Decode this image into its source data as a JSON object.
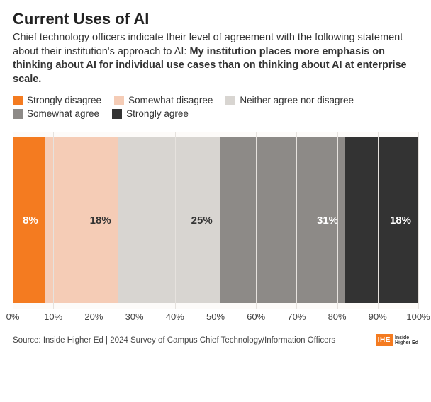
{
  "title": "Current Uses of AI",
  "subtitle_lead": "Chief technology officers indicate their level of agreement with the following statement about their institution's approach to AI: ",
  "subtitle_bold": "My institution places more emphasis on thinking about AI for individual use cases than on thinking about AI at enterprise scale.",
  "chart": {
    "type": "stacked-bar-horizontal",
    "background_color": "#fdfbf9",
    "grid_color": "#e6e2de",
    "xlim": [
      0,
      100
    ],
    "xtick_step": 10,
    "xticks": [
      "0%",
      "10%",
      "20%",
      "30%",
      "40%",
      "50%",
      "60%",
      "70%",
      "80%",
      "90%",
      "100%"
    ],
    "segments": [
      {
        "label": "Strongly disagree",
        "value": 8,
        "display": "8%",
        "color": "#f47b20",
        "text_color": "#ffffff"
      },
      {
        "label": "Somewhat disagree",
        "value": 18,
        "display": "18%",
        "color": "#f5ccb6",
        "text_color": "#333333"
      },
      {
        "label": "Neither agree nor disagree",
        "value": 25,
        "display": "25%",
        "color": "#d8d5d1",
        "text_color": "#333333"
      },
      {
        "label": "Somewhat agree",
        "value": 31,
        "display": "31%",
        "color": "#8d8a87",
        "text_color": "#ffffff"
      },
      {
        "label": "Strongly agree",
        "value": 18,
        "display": "18%",
        "color": "#333333",
        "text_color": "#ffffff"
      }
    ],
    "label_fontsize": 15,
    "label_fontweight": 700
  },
  "source": "Source: Inside Higher Ed | 2024 Survey of Campus Chief Technology/Information Officers",
  "logo": {
    "box": "IHE",
    "text_top": "Inside",
    "text_bottom": "Higher Ed",
    "box_color": "#f47b20"
  }
}
